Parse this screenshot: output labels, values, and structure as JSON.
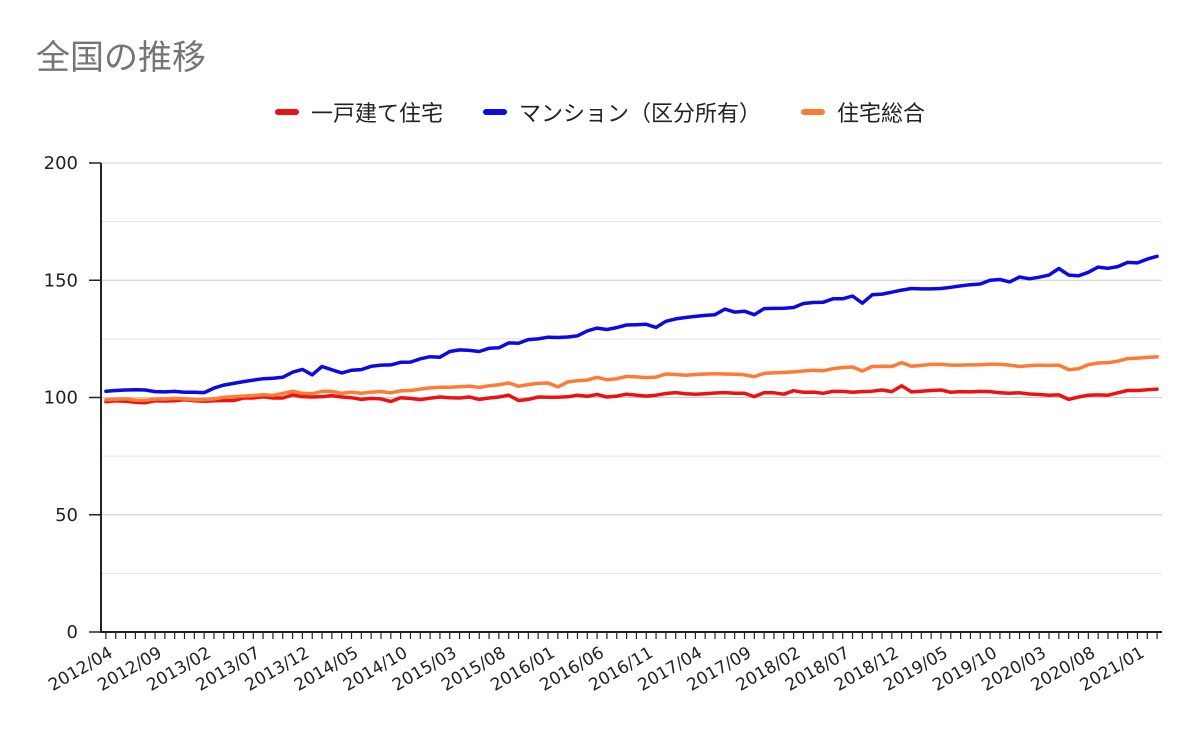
{
  "chart_data": {
    "type": "line",
    "title": "全国の推移",
    "xlabel": "",
    "ylabel": "",
    "ylim": [
      0,
      200
    ],
    "yticks": [
      0,
      50,
      100,
      150,
      200
    ],
    "grid": true,
    "legend_position": "top",
    "x_start": "2012/04",
    "x_tick_labels": [
      "2012/04",
      "2012/09",
      "2013/02",
      "2013/07",
      "2013/12",
      "2014/05",
      "2014/10",
      "2015/03",
      "2015/08",
      "2016/01",
      "2016/06",
      "2016/11",
      "2017/04",
      "2017/09",
      "2018/02",
      "2018/07",
      "2018/12",
      "2019/05",
      "2019/10",
      "2020/03",
      "2020/08",
      "2021/01"
    ],
    "series": [
      {
        "name": "一戸建て住宅",
        "color": "#ee1111",
        "values": [
          98.2,
          98.6,
          98.4,
          98.0,
          97.8,
          98.6,
          98.5,
          98.6,
          99.0,
          98.6,
          98.4,
          98.6,
          98.7,
          98.7,
          99.8,
          99.8,
          100.3,
          99.8,
          99.8,
          101.1,
          100.4,
          100.2,
          100.4,
          100.8,
          100.2,
          99.9,
          99.2,
          99.6,
          99.4,
          98.3,
          99.9,
          99.6,
          99.1,
          99.7,
          100.2,
          99.9,
          99.8,
          100.2,
          99.2,
          99.8,
          100.2,
          101.0,
          98.7,
          99.2,
          100.2,
          100.1,
          100.1,
          100.3,
          101.0,
          100.5,
          101.3,
          100.2,
          100.6,
          101.4,
          101.0,
          100.6,
          101.0,
          101.7,
          102.1,
          101.6,
          101.4,
          101.6,
          101.9,
          102.1,
          101.8,
          101.8,
          100.4,
          102.1,
          102.0,
          101.4,
          102.9,
          102.2,
          102.3,
          101.8,
          102.6,
          102.6,
          102.2,
          102.5,
          102.7,
          103.2,
          102.5,
          105.0,
          102.4,
          102.7,
          103.0,
          103.2,
          102.2,
          102.5,
          102.4,
          102.6,
          102.5,
          102.0,
          101.8,
          102.0,
          101.5,
          101.3,
          101.0,
          101.1,
          99.2,
          100.2,
          101.0,
          101.1,
          101.0,
          102.0,
          103.0,
          103.0,
          103.3,
          103.6
        ]
      },
      {
        "name": "マンション（区分所有）",
        "color": "#0a0ae6",
        "values": [
          102.7,
          103.0,
          103.2,
          103.3,
          103.2,
          102.5,
          102.4,
          102.6,
          102.2,
          102.2,
          102.1,
          104.0,
          105.3,
          106.0,
          106.8,
          107.4,
          108.0,
          108.2,
          108.6,
          110.8,
          112.0,
          109.7,
          113.2,
          111.8,
          110.5,
          111.6,
          111.9,
          113.3,
          113.8,
          113.9,
          115.0,
          115.1,
          116.5,
          117.4,
          117.2,
          119.6,
          120.3,
          120.1,
          119.6,
          121.0,
          121.2,
          123.3,
          123.1,
          124.7,
          125.0,
          125.7,
          125.6,
          125.8,
          126.3,
          128.4,
          129.6,
          129.0,
          129.8,
          130.9,
          131.0,
          131.2,
          129.9,
          132.5,
          133.5,
          134.1,
          134.6,
          135.0,
          135.3,
          137.7,
          136.4,
          136.8,
          135.3,
          137.9,
          138.0,
          138.1,
          138.4,
          140.1,
          140.5,
          140.6,
          142.1,
          142.1,
          143.3,
          140.2,
          143.8,
          144.1,
          144.9,
          145.8,
          146.5,
          146.3,
          146.3,
          146.5,
          147.0,
          147.6,
          148.1,
          148.4,
          150.0,
          150.3,
          149.3,
          151.4,
          150.6,
          151.3,
          152.2,
          155.0,
          152.2,
          151.9,
          153.4,
          155.6,
          155.1,
          155.8,
          157.6,
          157.4,
          159.0,
          160.2
        ]
      },
      {
        "name": "住宅総合",
        "color": "#ff7a33",
        "values": [
          99.0,
          99.2,
          99.4,
          98.9,
          98.8,
          99.3,
          99.3,
          99.6,
          99.4,
          99.0,
          99.0,
          99.4,
          100.1,
          100.3,
          100.6,
          100.8,
          101.2,
          100.9,
          101.7,
          102.7,
          101.8,
          101.6,
          102.6,
          102.6,
          101.8,
          102.2,
          101.8,
          102.3,
          102.5,
          102.0,
          102.8,
          103.0,
          103.6,
          104.1,
          104.4,
          104.4,
          104.6,
          104.8,
          104.3,
          105.0,
          105.4,
          106.2,
          104.8,
          105.5,
          106.0,
          106.2,
          104.5,
          106.6,
          107.2,
          107.4,
          108.6,
          107.6,
          108.0,
          109.0,
          108.8,
          108.5,
          108.7,
          110.0,
          109.8,
          109.5,
          109.8,
          110.0,
          110.1,
          110.0,
          109.9,
          109.7,
          108.9,
          110.3,
          110.5,
          110.7,
          110.9,
          111.3,
          111.6,
          111.4,
          112.3,
          112.8,
          113.0,
          111.3,
          113.2,
          113.3,
          113.2,
          114.9,
          113.3,
          113.7,
          114.1,
          114.2,
          113.8,
          113.8,
          113.9,
          114.0,
          114.2,
          114.2,
          113.8,
          113.2,
          113.6,
          113.8,
          113.7,
          113.8,
          111.9,
          112.3,
          114.0,
          114.7,
          114.9,
          115.5,
          116.6,
          116.8,
          117.1,
          117.3
        ]
      }
    ]
  }
}
